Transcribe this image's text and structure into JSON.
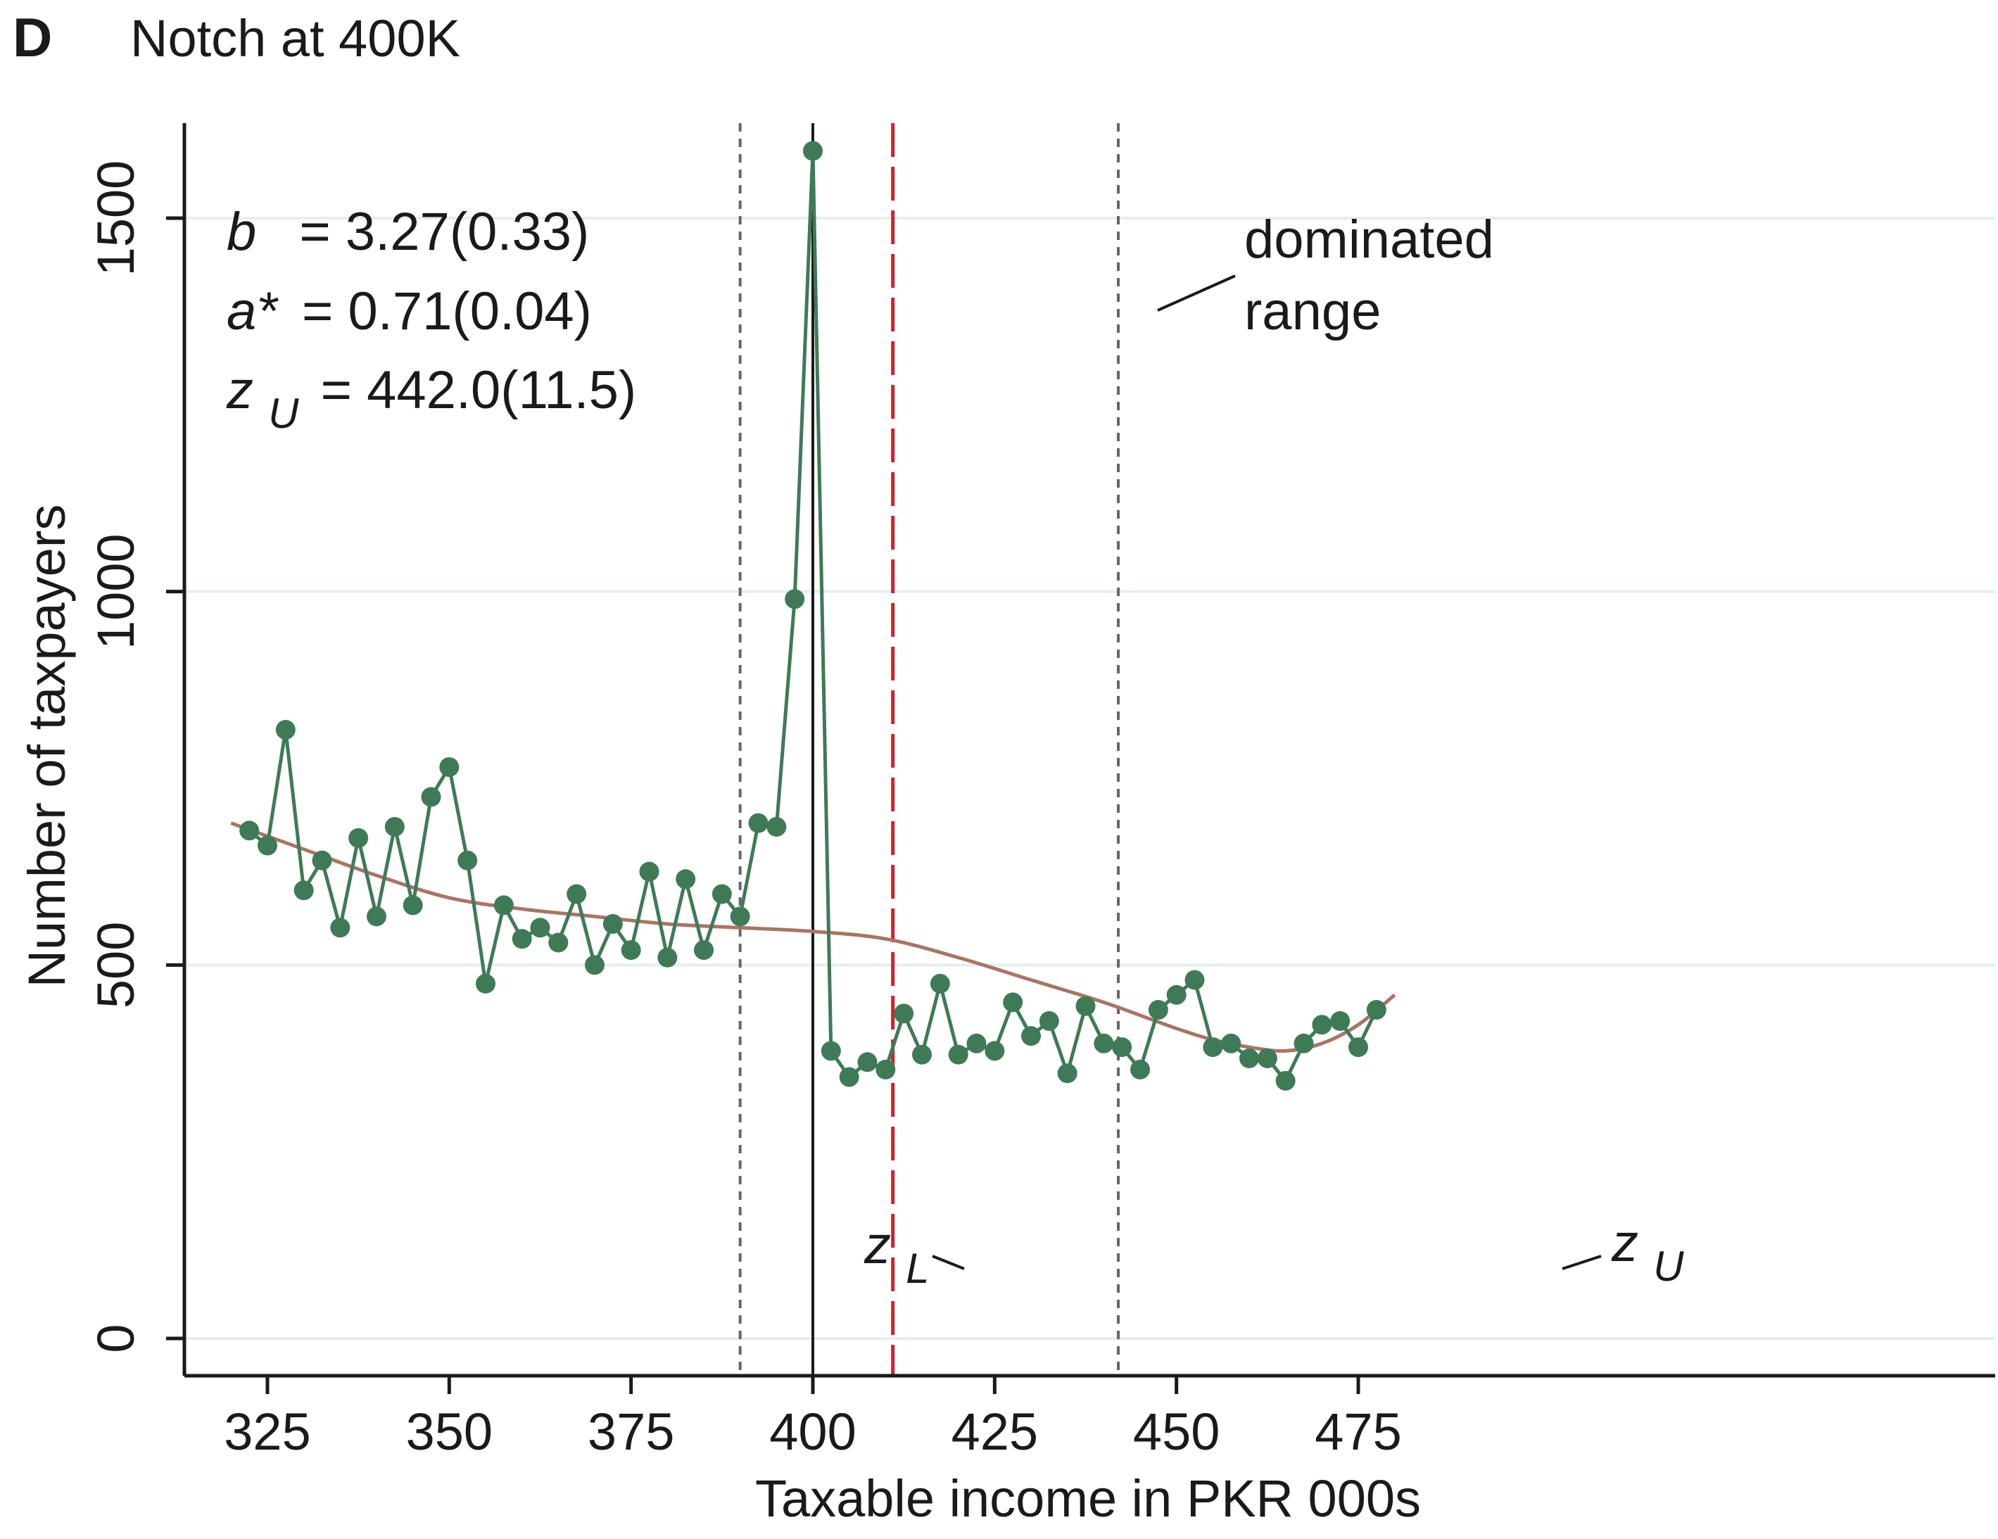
{
  "panel": {
    "letter": "D",
    "title": "Notch at 400K"
  },
  "stats": [
    {
      "symbol": "b",
      "subscript": "",
      "value": "= 3.27(0.33)"
    },
    {
      "symbol": "a*",
      "subscript": "",
      "value": "= 0.71(0.04)"
    },
    {
      "symbol": "z",
      "subscript": "U",
      "value": "= 442.0(11.5)"
    }
  ],
  "annotations": {
    "dominated_line1": "dominated",
    "dominated_line2": "range",
    "zl_symbol": "z",
    "zl_sub": "L",
    "zu_symbol": "z",
    "zu_sub": "U"
  },
  "colors": {
    "observed": "#3f7a57",
    "counterfactual": "#a97464",
    "notch_line": "#1a1a1a",
    "dominated_line": "#d4202a",
    "bound_lines": "#666666",
    "grid": "#e6edf3"
  },
  "chart_data": {
    "type": "line",
    "title": "Notch at 400K",
    "xlabel": "Taxable income in PKR 000s",
    "ylabel": "Number of taxpayers",
    "xlim": [
      320,
      480
    ],
    "ylim": [
      -50,
      1650
    ],
    "x_ticks": [
      325,
      350,
      375,
      400,
      425,
      450,
      475
    ],
    "y_ticks": [
      0,
      500,
      1000,
      1500
    ],
    "grid": "horizontal",
    "vertical_lines": [
      {
        "x": 390,
        "style": "dotted",
        "label": "zL"
      },
      {
        "x": 400,
        "style": "solid",
        "label": "notch"
      },
      {
        "x": 411,
        "style": "dashed-red",
        "label": "dominated range"
      },
      {
        "x": 442,
        "style": "dotted",
        "label": "zU"
      }
    ],
    "series": [
      {
        "kind": "observed",
        "x": [
          322.5,
          325,
          327.5,
          330,
          332.5,
          335,
          337.5,
          340,
          342.5,
          345,
          347.5,
          350,
          352.5,
          355,
          357.5,
          360,
          362.5,
          365,
          367.5,
          370,
          372.5,
          375,
          377.5,
          380,
          382.5,
          385,
          387.5,
          390,
          392.5,
          395,
          397.5,
          400,
          402.5,
          405,
          407.5,
          410,
          412.5,
          415,
          417.5,
          420,
          422.5,
          425,
          427.5,
          430,
          432.5,
          435,
          437.5,
          440,
          442.5,
          445,
          447.5,
          450,
          452.5,
          455,
          457.5,
          460,
          462.5,
          465,
          467.5,
          470,
          472.5,
          475,
          477.5
        ],
        "values": [
          680,
          660,
          815,
          600,
          640,
          550,
          670,
          565,
          685,
          580,
          725,
          765,
          640,
          475,
          580,
          535,
          550,
          530,
          595,
          500,
          555,
          520,
          625,
          510,
          615,
          520,
          595,
          565,
          690,
          685,
          990,
          1590,
          385,
          350,
          370,
          360,
          435,
          380,
          475,
          380,
          395,
          385,
          450,
          405,
          425,
          355,
          445,
          395,
          390,
          360,
          440,
          460,
          480,
          390,
          395,
          375,
          375,
          345,
          395,
          420,
          425,
          390,
          440
        ]
      },
      {
        "kind": "counterfactual",
        "x": [
          320,
          330,
          340,
          350,
          360,
          370,
          380,
          390,
          400,
          410,
          420,
          430,
          440,
          450,
          455,
          460,
          465,
          470,
          475,
          480
        ],
        "values": [
          690,
          655,
          620,
          590,
          575,
          565,
          555,
          550,
          545,
          535,
          510,
          480,
          450,
          415,
          400,
          390,
          385,
          395,
          420,
          460
        ]
      }
    ]
  }
}
